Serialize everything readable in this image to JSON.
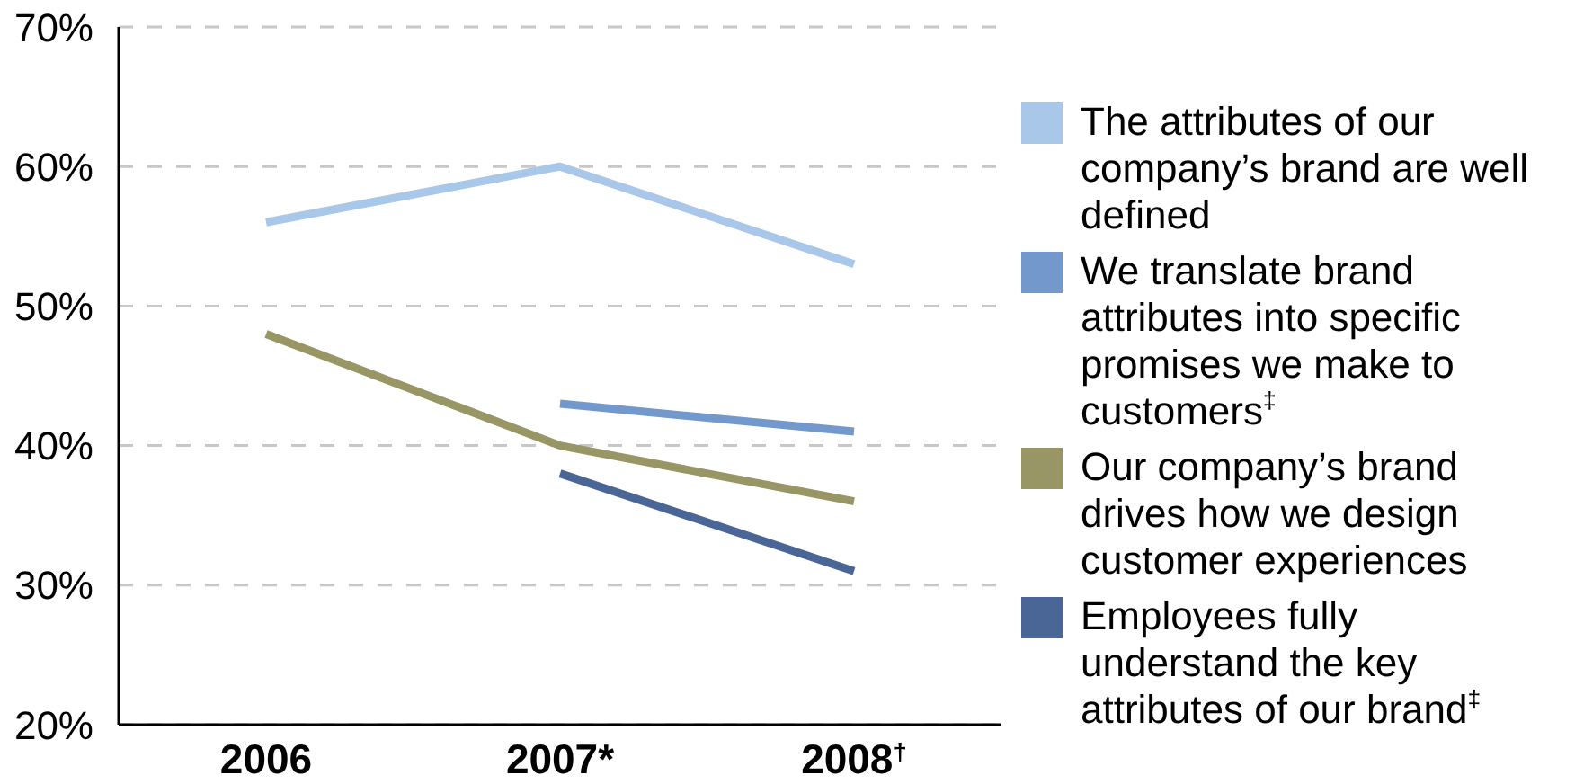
{
  "chart_data": {
    "type": "line",
    "categories": [
      "2006",
      "2007*",
      "2008$^{†}$"
    ],
    "series": [
      {
        "name": "The attributes of our company’s brand are well defined",
        "color": "#a9c7e9",
        "values": [
          56,
          60,
          53
        ]
      },
      {
        "name": "We translate brand attributes into specific promises we make to customers$^{‡}$",
        "color": "#7399cc",
        "values": [
          null,
          43,
          41
        ]
      },
      {
        "name": "Our company’s brand drives how we design customer experiences",
        "color": "#979664",
        "values": [
          48,
          40,
          36
        ]
      },
      {
        "name": "Employees fully understand the key attributes of our brand$^{‡}$",
        "color": "#4a6697",
        "values": [
          null,
          38,
          31
        ]
      }
    ],
    "ylim": [
      20,
      70
    ],
    "yticks": [
      {
        "value": 20,
        "label": "20%"
      },
      {
        "value": 30,
        "label": "30%"
      },
      {
        "value": 40,
        "label": "40%"
      },
      {
        "value": 50,
        "label": "50%"
      },
      {
        "value": 60,
        "label": "60%"
      },
      {
        "value": 70,
        "label": "70%"
      }
    ],
    "grid": "y",
    "legend": "right",
    "marker": "none",
    "line_style": "solid"
  }
}
